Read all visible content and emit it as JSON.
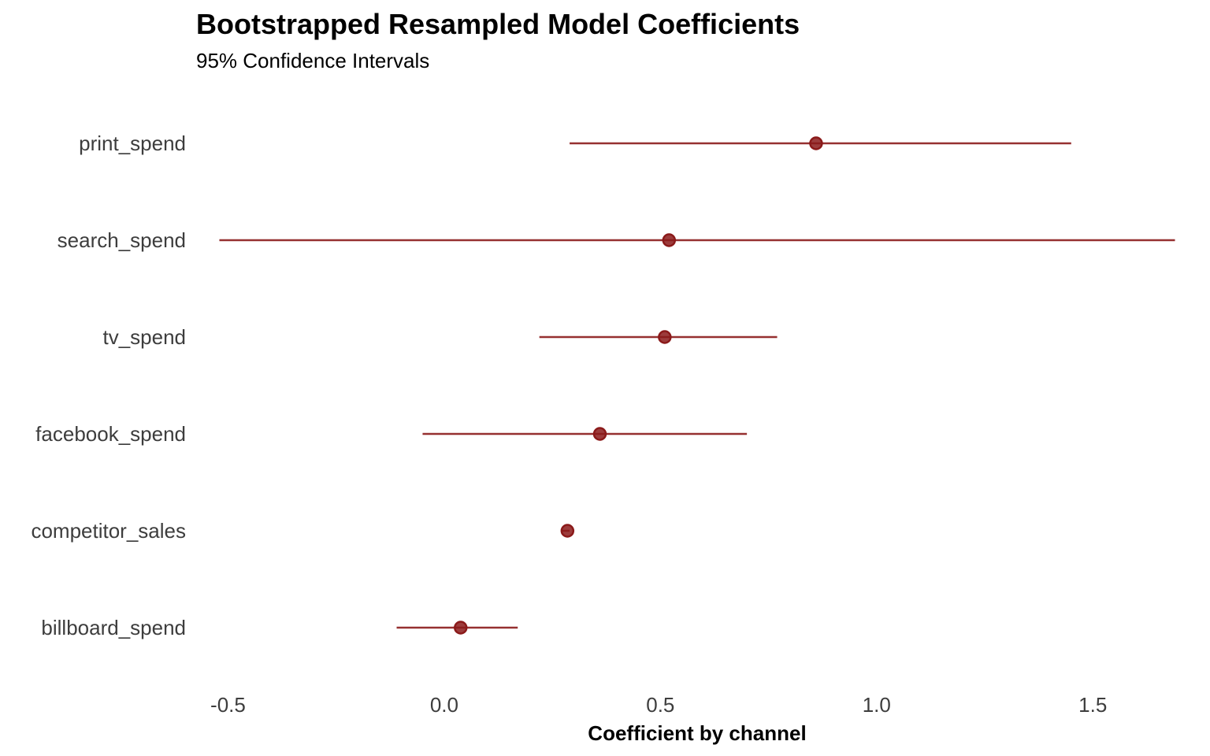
{
  "chart_data": {
    "type": "scatter",
    "title": "Bootstrapped Resampled Model Coefficients",
    "subtitle": "95% Confidence Intervals",
    "xlabel": "Coefficient by channel",
    "ylabel": "",
    "xlim": [
      -0.55,
      1.72
    ],
    "x_ticks": [
      -0.5,
      0.0,
      0.5,
      1.0,
      1.5
    ],
    "x_tick_labels": [
      "-0.5",
      "0.0",
      "0.5",
      "1.0",
      "1.5"
    ],
    "grid": false,
    "legend": "none",
    "color": "#8b1a1a",
    "categories": [
      "print_spend",
      "search_spend",
      "tv_spend",
      "facebook_spend",
      "competitor_sales",
      "billboard_spend"
    ],
    "estimates": [
      0.86,
      0.52,
      0.51,
      0.36,
      0.285,
      0.038
    ],
    "lower": [
      0.29,
      -0.52,
      0.22,
      -0.05,
      0.27,
      -0.11
    ],
    "upper": [
      1.45,
      1.69,
      0.77,
      0.7,
      0.29,
      0.17
    ]
  }
}
